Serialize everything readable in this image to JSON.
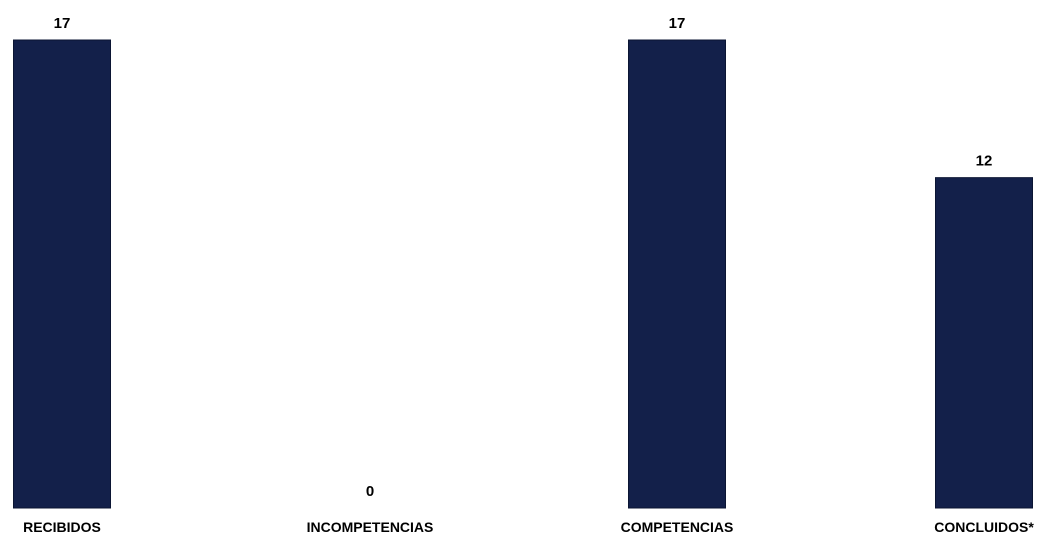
{
  "chart_data": {
    "type": "bar",
    "categories": [
      "RECIBIDOS",
      "INCOMPETENCIAS",
      "COMPETENCIAS",
      "CONCLUIDOS*"
    ],
    "values": [
      17,
      0,
      17,
      12
    ],
    "data_labels": [
      "17",
      "0",
      "17",
      "12"
    ],
    "title": "",
    "xlabel": "",
    "ylabel": "",
    "ylim": [
      0,
      17
    ],
    "grid": false,
    "legend": "none",
    "bar_color": "#13204a",
    "background": "#ffffff"
  }
}
